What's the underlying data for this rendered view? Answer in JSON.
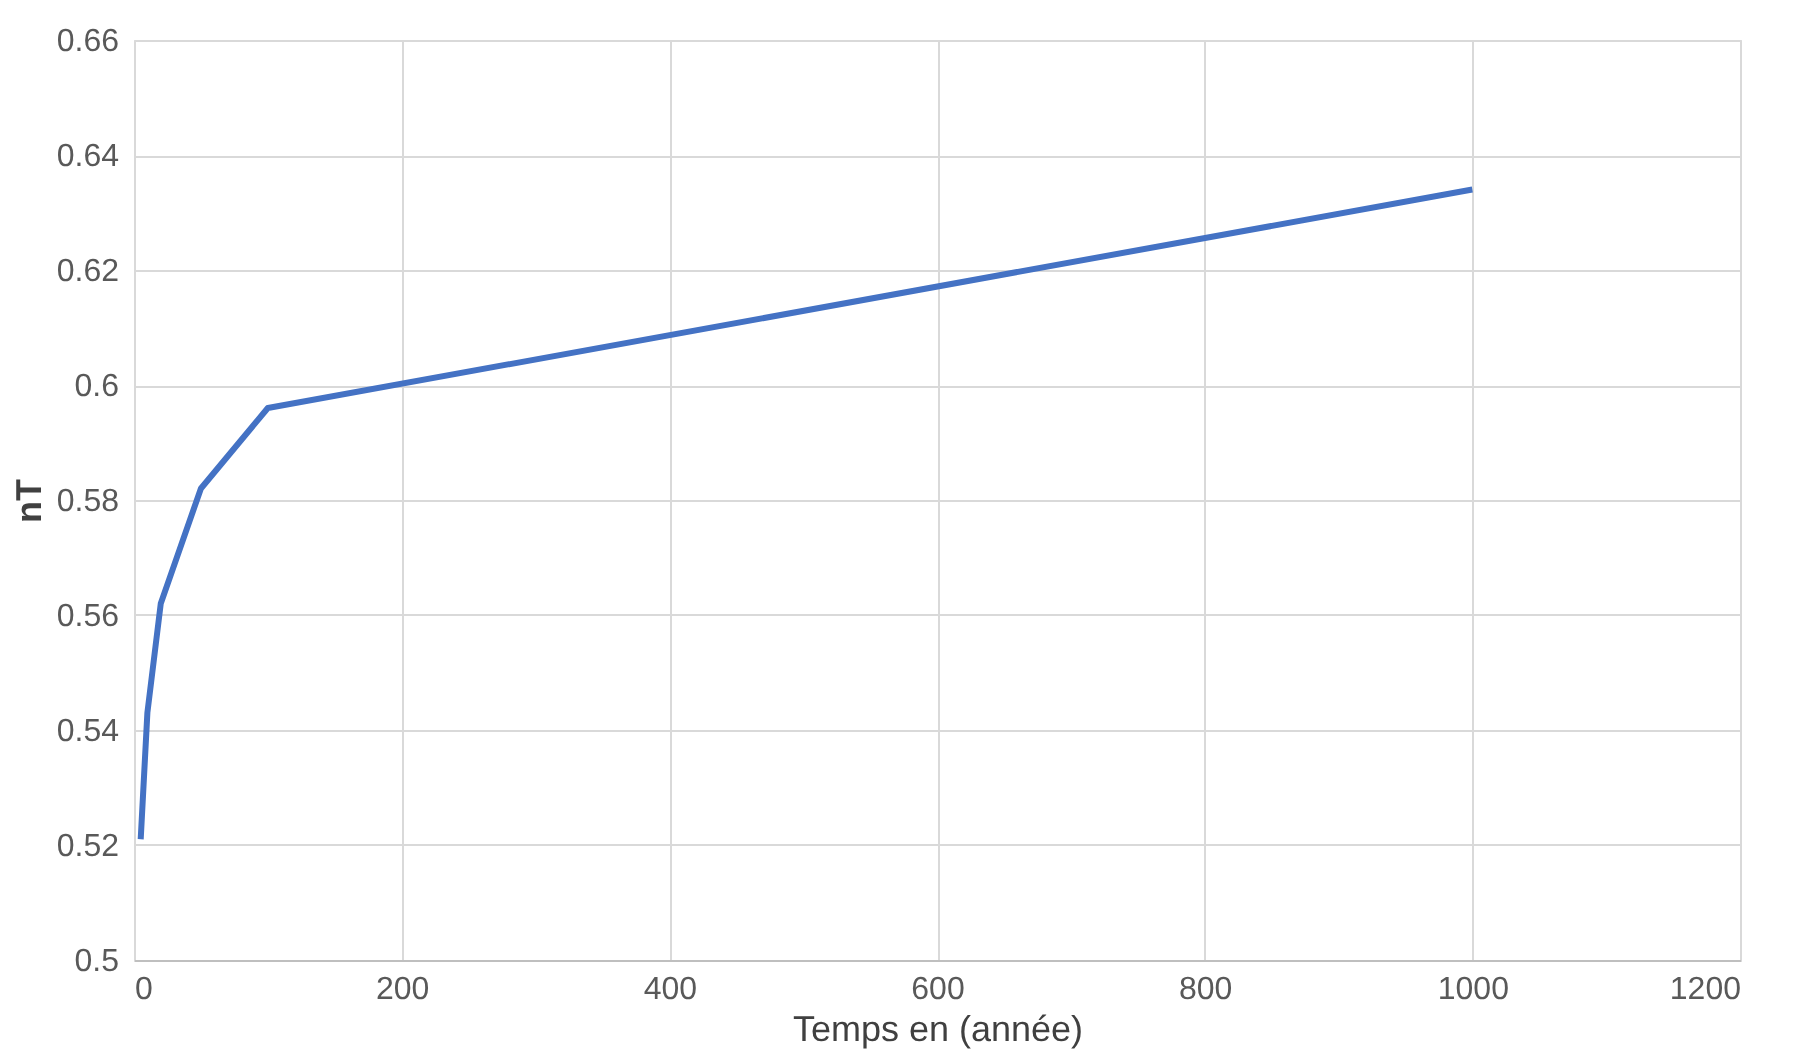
{
  "chart_data": {
    "type": "line",
    "xlabel": "Temps en (année)",
    "ylabel": "nT",
    "x": [
      5,
      10,
      20,
      50,
      100,
      1000
    ],
    "series": [
      {
        "color": "#4472c4",
        "values": [
          0.521,
          0.543,
          0.562,
          0.582,
          0.596,
          0.634
        ]
      }
    ],
    "xlim": [
      0,
      1200
    ],
    "xticks": [
      0,
      200,
      400,
      600,
      800,
      1000,
      1200
    ],
    "ylim": [
      0.5,
      0.66
    ],
    "yticks": [
      0.5,
      0.52,
      0.54,
      0.56,
      0.58,
      0.6,
      0.62,
      0.64,
      0.66
    ],
    "grid": true
  }
}
